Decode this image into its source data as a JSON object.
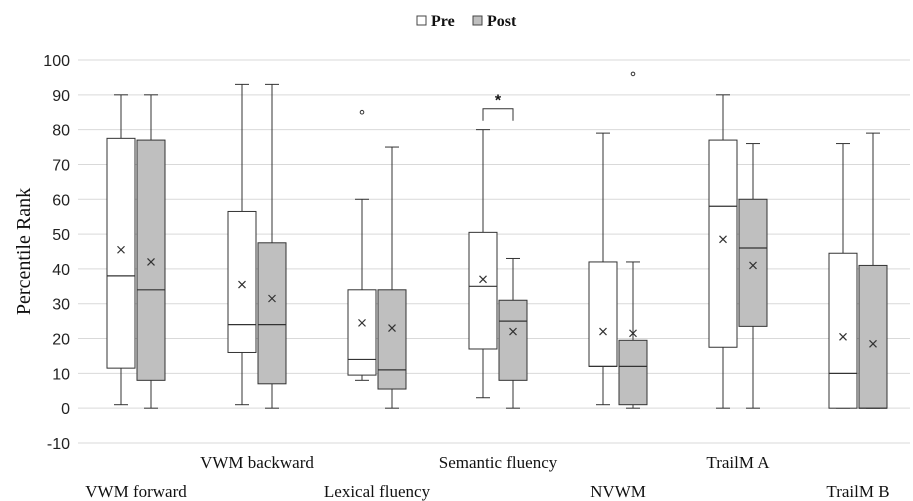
{
  "chart_data": {
    "type": "box",
    "ylabel": "Percentile Rank",
    "ylim": [
      -10,
      100
    ],
    "yticks": [
      -10,
      0,
      10,
      20,
      30,
      40,
      50,
      60,
      70,
      80,
      90,
      100
    ],
    "grid": true,
    "legend_position": "top-center",
    "categories": [
      "VWM forward",
      "VWM backward",
      "Lexical fluency",
      "Semantic fluency",
      "NVWM",
      "TrailM A",
      "TrailM B"
    ],
    "series": [
      {
        "name": "Pre",
        "color": "#ffffff",
        "boxes": [
          {
            "min": 1,
            "q1": 11.5,
            "median": 38,
            "q3": 77.5,
            "max": 90,
            "mean": 45.5,
            "outliers": []
          },
          {
            "min": 1,
            "q1": 16,
            "median": 24,
            "q3": 56.5,
            "max": 93,
            "mean": 35.5,
            "outliers": []
          },
          {
            "min": 8,
            "q1": 9.5,
            "median": 14,
            "q3": 34,
            "max": 60,
            "mean": 24.5,
            "outliers": [
              85
            ]
          },
          {
            "min": 3,
            "q1": 17,
            "median": 35,
            "q3": 50.5,
            "max": 80,
            "mean": 37,
            "outliers": []
          },
          {
            "min": 1,
            "q1": 12,
            "median": 12,
            "q3": 42,
            "max": 79,
            "mean": 22,
            "outliers": []
          },
          {
            "min": 0,
            "q1": 17.5,
            "median": 58,
            "q3": 77,
            "max": 90,
            "mean": 48.5,
            "outliers": []
          },
          {
            "min": 0,
            "q1": 0,
            "median": 10,
            "q3": 44.5,
            "max": 76,
            "mean": 20.5,
            "outliers": []
          }
        ]
      },
      {
        "name": "Post",
        "color": "#bfbfbf",
        "boxes": [
          {
            "min": 0,
            "q1": 8,
            "median": 34,
            "q3": 77,
            "max": 90,
            "mean": 42,
            "outliers": []
          },
          {
            "min": 0,
            "q1": 7,
            "median": 24,
            "q3": 47.5,
            "max": 93,
            "mean": 31.5,
            "outliers": []
          },
          {
            "min": 0,
            "q1": 5.5,
            "median": 11,
            "q3": 34,
            "max": 75,
            "mean": 23,
            "outliers": []
          },
          {
            "min": 0,
            "q1": 8,
            "median": 25,
            "q3": 31,
            "max": 43,
            "mean": 22,
            "outliers": []
          },
          {
            "min": 0,
            "q1": 1,
            "median": 12,
            "q3": 19.5,
            "max": 42,
            "mean": 21.5,
            "outliers": [
              96
            ]
          },
          {
            "min": 0,
            "q1": 23.5,
            "median": 46,
            "q3": 60,
            "max": 76,
            "mean": 41,
            "outliers": []
          },
          {
            "min": 0,
            "q1": 0,
            "median": 0,
            "q3": 41,
            "max": 79,
            "mean": 18.5,
            "outliers": []
          }
        ]
      }
    ],
    "annotations": [
      {
        "text": "*",
        "category": "Semantic fluency",
        "bracket_y": 86
      }
    ]
  }
}
